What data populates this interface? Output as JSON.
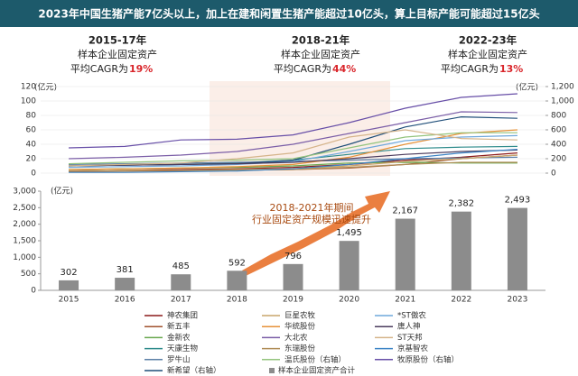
{
  "header": {
    "title": "2023年中国生猪产能7亿头以上，加上在建和闲置生猪产能超过10亿头，算上目标产能可能超过15亿头"
  },
  "periods": [
    {
      "years": "2015-17年",
      "label": "样本企业固定资产",
      "prefix": "平均CAGR为",
      "cagr": "19%"
    },
    {
      "years": "2018-21年",
      "label": "样本企业固定资产",
      "prefix": "平均CAGR为",
      "cagr": "44%"
    },
    {
      "years": "2022-23年",
      "label": "样本企业固定资产",
      "prefix": "平均CAGR为",
      "cagr": "13%"
    }
  ],
  "chart_data": [
    {
      "type": "line",
      "y_unit": "(亿元)",
      "y2_unit": "(亿元)",
      "ylim": [
        0,
        120
      ],
      "yticks": [
        0,
        20,
        40,
        60,
        80,
        100,
        120
      ],
      "y2lim": [
        0,
        1200
      ],
      "y2ticks": [
        0,
        200,
        400,
        600,
        800,
        {
          "value": 1000,
          "label": "1,000"
        },
        {
          "value": 1200,
          "label": "1,200"
        }
      ],
      "series": [
        {
          "name": "神农集团",
          "color": "#8b1a1a",
          "values": [
            3,
            4,
            5,
            6,
            8,
            12,
            18,
            22,
            28
          ]
        },
        {
          "name": "新五丰",
          "color": "#a0522d",
          "values": [
            2,
            3,
            3,
            4,
            5,
            7,
            12,
            20,
            25
          ]
        },
        {
          "name": "金新农",
          "color": "#6aa84f",
          "values": [
            5,
            6,
            7,
            8,
            10,
            14,
            15,
            14,
            14
          ]
        },
        {
          "name": "天康生物",
          "color": "#2e8b8b",
          "values": [
            10,
            11,
            12,
            14,
            18,
            26,
            34,
            36,
            37
          ]
        },
        {
          "name": "罗牛山",
          "color": "#5b7fa6",
          "values": [
            12,
            13,
            14,
            15,
            16,
            18,
            20,
            21,
            22
          ]
        },
        {
          "name": "新希望（右轴）",
          "color": "#1f4e79",
          "axis": "y2",
          "values": [
            100,
            110,
            120,
            130,
            180,
            400,
            640,
            780,
            760
          ]
        },
        {
          "name": "巨星农牧",
          "color": "#c9a66b",
          "values": [
            3,
            4,
            4,
            5,
            6,
            10,
            16,
            20,
            25
          ]
        },
        {
          "name": "华统股份",
          "color": "#e69138",
          "values": [
            5,
            6,
            7,
            9,
            12,
            22,
            40,
            55,
            60
          ]
        },
        {
          "name": "大北农",
          "color": "#7b5ea7",
          "values": [
            20,
            22,
            25,
            30,
            40,
            55,
            70,
            85,
            84
          ]
        },
        {
          "name": "东瑞股份",
          "color": "#b08d57",
          "values": [
            3,
            3,
            4,
            4,
            5,
            8,
            12,
            15,
            15
          ]
        },
        {
          "name": "温氏股份（右轴）",
          "color": "#93c47d",
          "axis": "y2",
          "values": [
            130,
            150,
            170,
            180,
            200,
            350,
            500,
            560,
            560
          ]
        },
        {
          "name": "*ST傲农",
          "color": "#6fa8dc",
          "values": [
            8,
            9,
            10,
            12,
            16,
            30,
            45,
            50,
            52
          ]
        },
        {
          "name": "唐人神",
          "color": "#4a3b5c",
          "values": [
            10,
            11,
            12,
            13,
            15,
            20,
            26,
            30,
            32
          ]
        },
        {
          "name": "ST天邦",
          "color": "#d5b48a",
          "values": [
            10,
            12,
            14,
            20,
            28,
            50,
            60,
            48,
            46
          ]
        },
        {
          "name": "京基智农",
          "color": "#3d85c6",
          "values": [
            1,
            1,
            2,
            3,
            6,
            12,
            20,
            28,
            33
          ]
        },
        {
          "name": "牧原股份（右轴）",
          "color": "#674ea7",
          "axis": "y2",
          "values": [
            350,
            370,
            460,
            470,
            530,
            700,
            900,
            1050,
            1100
          ]
        }
      ]
    },
    {
      "type": "bar",
      "y_unit": "(亿元)",
      "categories": [
        "2015",
        "2016",
        "2017",
        "2018",
        "2019",
        "2020",
        "2021",
        "2022",
        "2023"
      ],
      "ylim": [
        0,
        3000
      ],
      "yticks": [
        0,
        500,
        {
          "value": 1000,
          "label": "1,000"
        },
        {
          "value": 1500,
          "label": "1,500"
        },
        {
          "value": 2000,
          "label": "2,000"
        },
        {
          "value": 2500,
          "label": "2,500"
        },
        {
          "value": 3000,
          "label": "3,000"
        }
      ],
      "series": [
        {
          "name": "样本企业固定资产合计",
          "color": "#8c8c8c",
          "values": [
            302,
            381,
            485,
            592,
            796,
            1495,
            2167,
            2382,
            2493
          ],
          "value_labels": [
            "302",
            "381",
            "485",
            "592",
            "796",
            "1,495",
            "2,167",
            "2,382",
            "2,493"
          ]
        }
      ],
      "annotation": [
        "2018-2021年期间",
        "行业固定资产规模迅速提升"
      ]
    }
  ]
}
